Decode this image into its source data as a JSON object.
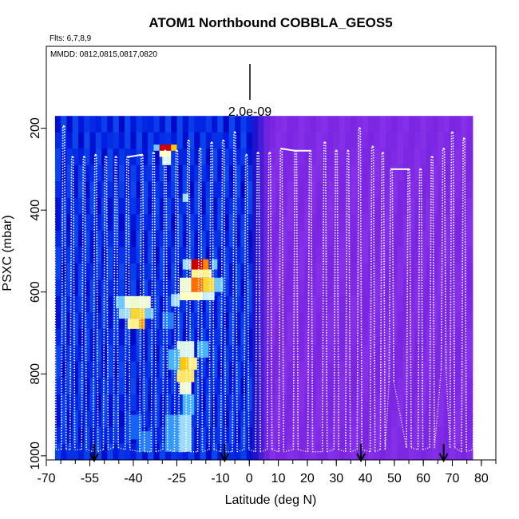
{
  "chart_data": {
    "type": "heatmap",
    "title": "ATOM1 Northbound COBBLA_GEOS5",
    "subtitle_left": "Flts: 6,7,8,9",
    "annotation": "MMDD: 0812,0815,0817,0820",
    "xlabel": "Latitude (deg N)",
    "ylabel": "PSXC (mbar)",
    "xlim": [
      -70,
      85
    ],
    "ylim": [
      1010,
      0
    ],
    "x_ticks": [
      -70,
      -55,
      -40,
      -25,
      -10,
      0,
      10,
      20,
      30,
      40,
      50,
      60,
      70,
      80
    ],
    "x_tick_labels": [
      "-70",
      "-55",
      "-40",
      "-25",
      "-10",
      "0",
      "10",
      "20",
      "30",
      "40",
      "50",
      "60",
      "70",
      "80"
    ],
    "y_ticks": [
      200,
      400,
      600,
      800,
      1000
    ],
    "y_tick_labels": [
      "200",
      "400",
      "600",
      "800",
      "1000"
    ],
    "scale_bar_label": "2.0e-09",
    "scale_bar_value": 2e-09,
    "arrow_latitudes": [
      -53.5,
      -8.5,
      38.5,
      67
    ],
    "field_extent": {
      "lat": [
        -67,
        77
      ],
      "pressure": [
        170,
        990
      ]
    },
    "colors": {
      "low": "#0000c8",
      "north_background": "#7f28e6",
      "peak": "#d00000",
      "profile_line": "#ffffff"
    },
    "profiles": [
      {
        "lat": -67.5,
        "top": 205,
        "base": 985
      },
      {
        "lat": -64,
        "top": 195,
        "base": 985
      },
      {
        "lat": -61,
        "top": 270,
        "base": 985
      },
      {
        "lat": -57,
        "top": 270,
        "base": 985
      },
      {
        "lat": -53,
        "top": 265,
        "base": 990
      },
      {
        "lat": -49.5,
        "top": 270,
        "base": 985
      },
      {
        "lat": -46,
        "top": 270,
        "base": 980
      },
      {
        "lat": -42,
        "top": 270,
        "base": 985
      },
      {
        "lat": -37,
        "top": 265,
        "base": 990
      },
      {
        "lat": -33,
        "top": 260,
        "base": 990
      },
      {
        "lat": -29,
        "top": 255,
        "base": 985
      },
      {
        "lat": -25,
        "top": 255,
        "base": 990
      },
      {
        "lat": -21,
        "top": 230,
        "base": 990
      },
      {
        "lat": -17,
        "top": 250,
        "base": 990
      },
      {
        "lat": -13,
        "top": 235,
        "base": 985
      },
      {
        "lat": -9,
        "top": 230,
        "base": 990
      },
      {
        "lat": -5,
        "top": 210,
        "base": 990
      },
      {
        "lat": -1,
        "top": 265,
        "base": 985
      },
      {
        "lat": 3,
        "top": 260,
        "base": 990
      },
      {
        "lat": 7,
        "top": 260,
        "base": 985
      },
      {
        "lat": 11,
        "top": 250,
        "base": 990
      },
      {
        "lat": 16,
        "top": 255,
        "base": 985
      },
      {
        "lat": 21,
        "top": 255,
        "base": 990
      },
      {
        "lat": 26,
        "top": 235,
        "base": 990
      },
      {
        "lat": 30,
        "top": 255,
        "base": 985
      },
      {
        "lat": 34,
        "top": 255,
        "base": 990
      },
      {
        "lat": 38,
        "top": 200,
        "base": 985
      },
      {
        "lat": 42.5,
        "top": 245,
        "base": 990
      },
      {
        "lat": 46,
        "top": 260,
        "base": 985
      },
      {
        "lat": 49,
        "top": 300,
        "base": 820
      },
      {
        "lat": 55,
        "top": 300,
        "base": 980
      },
      {
        "lat": 59,
        "top": 300,
        "base": 985
      },
      {
        "lat": 63,
        "top": 270,
        "base": 980
      },
      {
        "lat": 67,
        "top": 250,
        "base": 790
      },
      {
        "lat": 70,
        "top": 210,
        "base": 980
      },
      {
        "lat": 74,
        "top": 225,
        "base": 990
      },
      {
        "lat": 78,
        "top": 255,
        "base": 985
      }
    ],
    "hotspots": [
      {
        "lat": [
          -31,
          -27
        ],
        "p": [
          240,
          255
        ],
        "value": 2.6
      },
      {
        "lat": [
          -27,
          -25
        ],
        "p": [
          240,
          255
        ],
        "value": 1.8
      },
      {
        "lat": [
          -33,
          -31
        ],
        "p": [
          240,
          255
        ],
        "value": 0.9
      },
      {
        "lat": [
          -31,
          -27
        ],
        "p": [
          255,
          270
        ],
        "value": 1.4
      },
      {
        "lat": [
          -30,
          -27
        ],
        "p": [
          270,
          290
        ],
        "value": 1.2
      },
      {
        "lat": [
          -23,
          -21
        ],
        "p": [
          360,
          380
        ],
        "value": 1.0
      },
      {
        "lat": [
          -20,
          -15
        ],
        "p": [
          520,
          545
        ],
        "value": 2.6
      },
      {
        "lat": [
          -16,
          -14
        ],
        "p": [
          520,
          545
        ],
        "value": 2.1
      },
      {
        "lat": [
          -23,
          -20
        ],
        "p": [
          520,
          545
        ],
        "value": 1.0
      },
      {
        "lat": [
          -13,
          -11
        ],
        "p": [
          520,
          545
        ],
        "value": 0.9
      },
      {
        "lat": [
          -20,
          -13
        ],
        "p": [
          545,
          565
        ],
        "value": 1.5
      },
      {
        "lat": [
          -24,
          -20
        ],
        "p": [
          565,
          600
        ],
        "value": 1.3
      },
      {
        "lat": [
          -20,
          -16
        ],
        "p": [
          565,
          600
        ],
        "value": 2.2
      },
      {
        "lat": [
          -16,
          -12
        ],
        "p": [
          565,
          600
        ],
        "value": 1.7
      },
      {
        "lat": [
          -12,
          -9
        ],
        "p": [
          565,
          600
        ],
        "value": 0.9
      },
      {
        "lat": [
          -24,
          -16
        ],
        "p": [
          600,
          620
        ],
        "value": 1.4
      },
      {
        "lat": [
          -16,
          -12
        ],
        "p": [
          600,
          620
        ],
        "value": 1.1
      },
      {
        "lat": [
          -27,
          -24
        ],
        "p": [
          605,
          635
        ],
        "value": 1.0
      },
      {
        "lat": [
          -43,
          -34
        ],
        "p": [
          610,
          640
        ],
        "value": 1.3
      },
      {
        "lat": [
          -46,
          -43
        ],
        "p": [
          610,
          640
        ],
        "value": 0.9
      },
      {
        "lat": [
          -41,
          -36
        ],
        "p": [
          640,
          665
        ],
        "value": 1.7
      },
      {
        "lat": [
          -45,
          -41
        ],
        "p": [
          640,
          665
        ],
        "value": 1.0
      },
      {
        "lat": [
          -36,
          -33
        ],
        "p": [
          640,
          665
        ],
        "value": 0.9
      },
      {
        "lat": [
          -42,
          -37
        ],
        "p": [
          665,
          690
        ],
        "value": 1.5
      },
      {
        "lat": [
          -38,
          -36
        ],
        "p": [
          665,
          690
        ],
        "value": 2.0
      },
      {
        "lat": [
          -30,
          -26
        ],
        "p": [
          650,
          690
        ],
        "value": 0.6
      },
      {
        "lat": [
          -25,
          -19
        ],
        "p": [
          720,
          760
        ],
        "value": 1.2
      },
      {
        "lat": [
          -21,
          -18
        ],
        "p": [
          760,
          790
        ],
        "value": 1.5
      },
      {
        "lat": [
          -24,
          -21
        ],
        "p": [
          760,
          790
        ],
        "value": 1.8
      },
      {
        "lat": [
          -25,
          -19
        ],
        "p": [
          790,
          820
        ],
        "value": 1.6
      },
      {
        "lat": [
          -24,
          -20
        ],
        "p": [
          820,
          850
        ],
        "value": 1.3
      },
      {
        "lat": [
          -28,
          -24
        ],
        "p": [
          740,
          790
        ],
        "value": 0.8
      },
      {
        "lat": [
          -18,
          -14
        ],
        "p": [
          720,
          760
        ],
        "value": 0.8
      },
      {
        "lat": [
          -23,
          -19
        ],
        "p": [
          850,
          900
        ],
        "value": 0.8
      },
      {
        "lat": [
          -24,
          -20
        ],
        "p": [
          900,
          990
        ],
        "value": 1.0
      },
      {
        "lat": [
          -29,
          -24
        ],
        "p": [
          900,
          990
        ],
        "value": 0.7
      },
      {
        "lat": [
          -41,
          -37
        ],
        "p": [
          900,
          960
        ],
        "value": 0.5
      },
      {
        "lat": [
          -38,
          -34
        ],
        "p": [
          940,
          990
        ],
        "value": 0.6
      }
    ]
  }
}
